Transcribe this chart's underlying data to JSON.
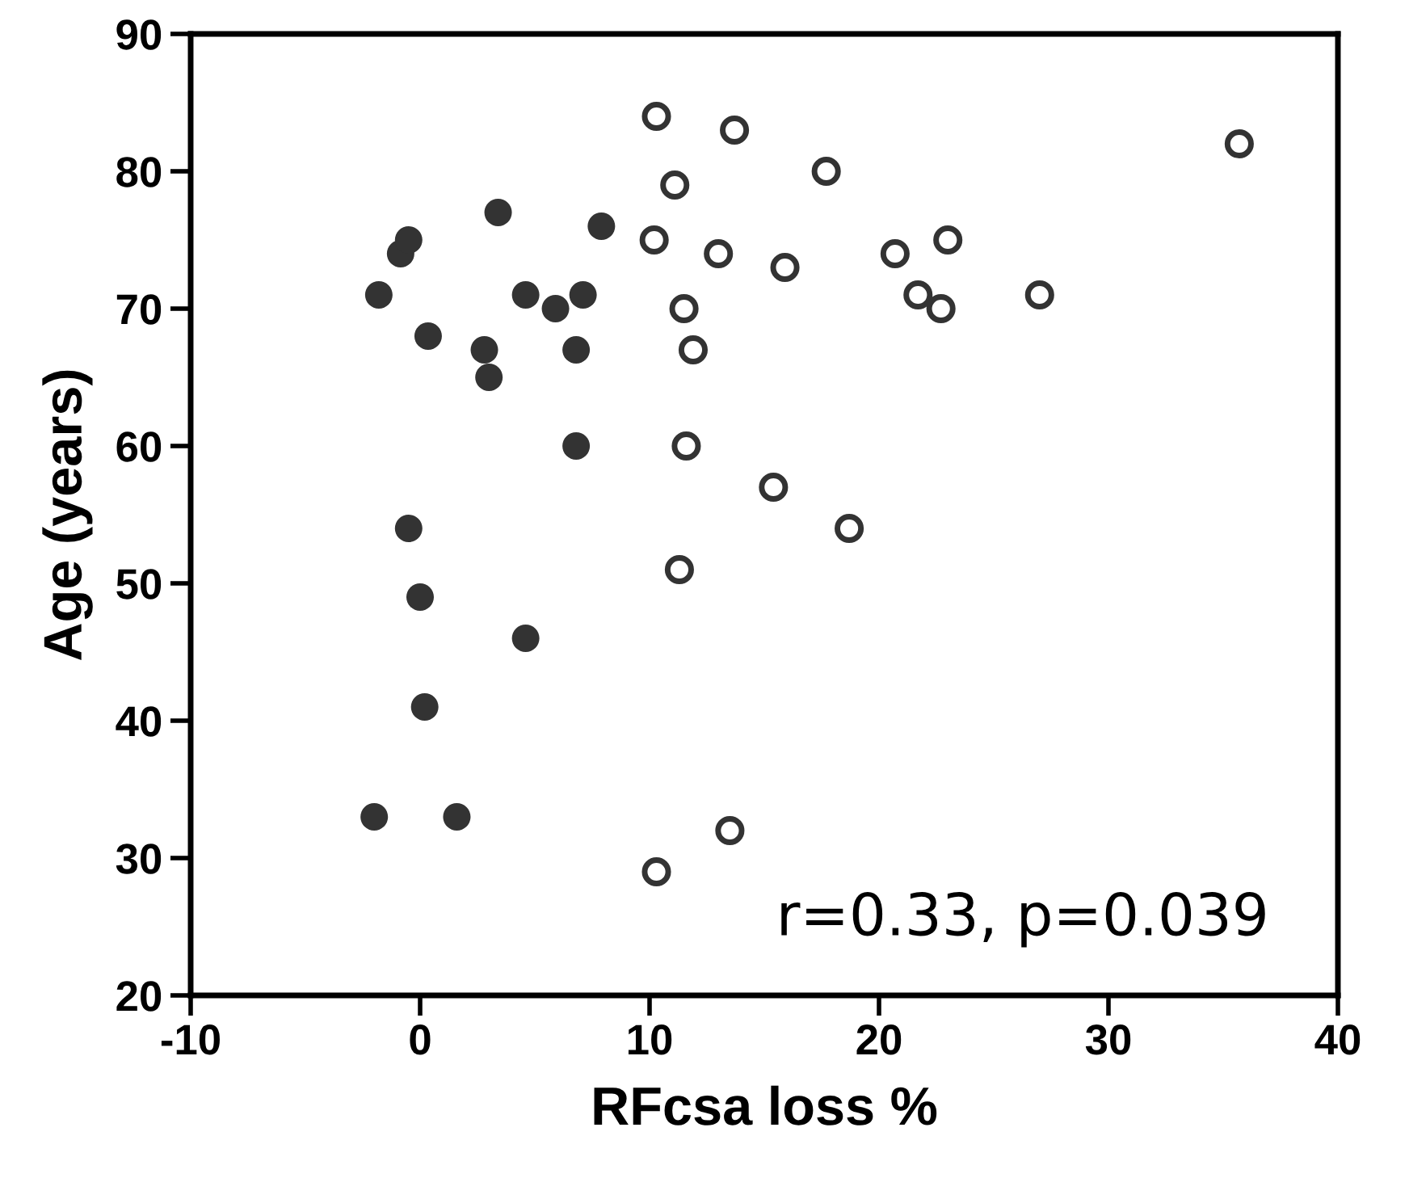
{
  "chart_data": {
    "type": "scatter",
    "xlabel": "RFcsa loss %",
    "ylabel": "Age (years)",
    "xlim": [
      -10,
      40
    ],
    "xticks": [
      -10,
      0,
      10,
      20,
      30,
      40
    ],
    "ylim": [
      20,
      90
    ],
    "yticks": [
      20,
      30,
      40,
      50,
      60,
      70,
      80,
      90
    ],
    "marker": "circle",
    "grid": false,
    "legend": false,
    "annotations": [
      "r=0.33, p=0.039"
    ],
    "series": [
      {
        "color": "#333333",
        "x": [
          -1.8,
          -0.85,
          -0.5,
          0.35,
          3.4,
          2.8,
          3.0,
          4.6,
          5.9,
          7.1,
          7.9,
          6.8,
          6.8,
          -0.5,
          0,
          4.6,
          0.2,
          -2.0,
          1.6
        ],
        "values": [
          71,
          74,
          75,
          68,
          77,
          67,
          65,
          71,
          70,
          71,
          76,
          67,
          60,
          54,
          49,
          46,
          41,
          33,
          33
        ]
      },
      {
        "color": "#333333",
        "x": [
          10.3,
          13.7,
          11.1,
          10.2,
          13.0,
          11.5,
          11.9,
          11.6,
          11.3,
          10.3,
          13.5,
          17.7,
          15.9,
          15.4,
          18.7,
          20.7,
          23.0,
          21.7,
          22.7,
          27.0,
          35.7
        ],
        "values": [
          84,
          83,
          79,
          75,
          74,
          70,
          67,
          60,
          51,
          29,
          32,
          80,
          73,
          57,
          54,
          74,
          75,
          71,
          70,
          71,
          82
        ]
      }
    ]
  }
}
